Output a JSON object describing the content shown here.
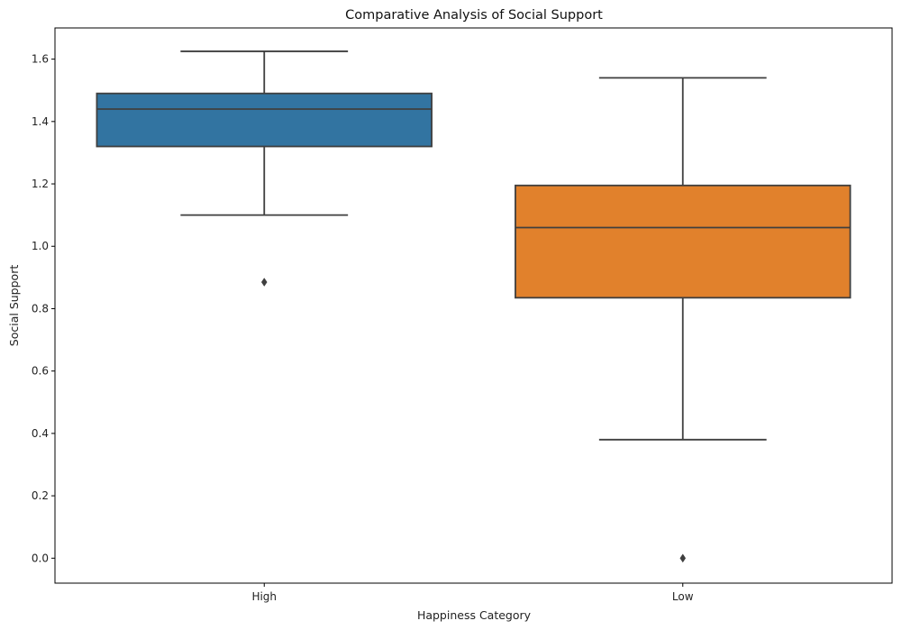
{
  "chart_data": {
    "type": "box",
    "title": "Comparative Analysis of Social Support",
    "xlabel": "Happiness Category",
    "ylabel": "Social Support",
    "ylim": [
      -0.08,
      1.7
    ],
    "yticks": [
      "0.0",
      "0.2",
      "0.4",
      "0.6",
      "0.8",
      "1.0",
      "1.2",
      "1.4",
      "1.6"
    ],
    "grid": false,
    "categories": [
      "High",
      "Low"
    ],
    "boxes": [
      {
        "category": "High",
        "whisker_low": 1.1,
        "q1": 1.32,
        "median": 1.44,
        "q3": 1.49,
        "whisker_high": 1.625,
        "outliers": [
          0.885
        ],
        "color": "#3274a1"
      },
      {
        "category": "Low",
        "whisker_low": 0.38,
        "q1": 0.835,
        "median": 1.06,
        "q3": 1.195,
        "whisker_high": 1.54,
        "outliers": [
          0.0
        ],
        "color": "#e1812c"
      }
    ]
  }
}
